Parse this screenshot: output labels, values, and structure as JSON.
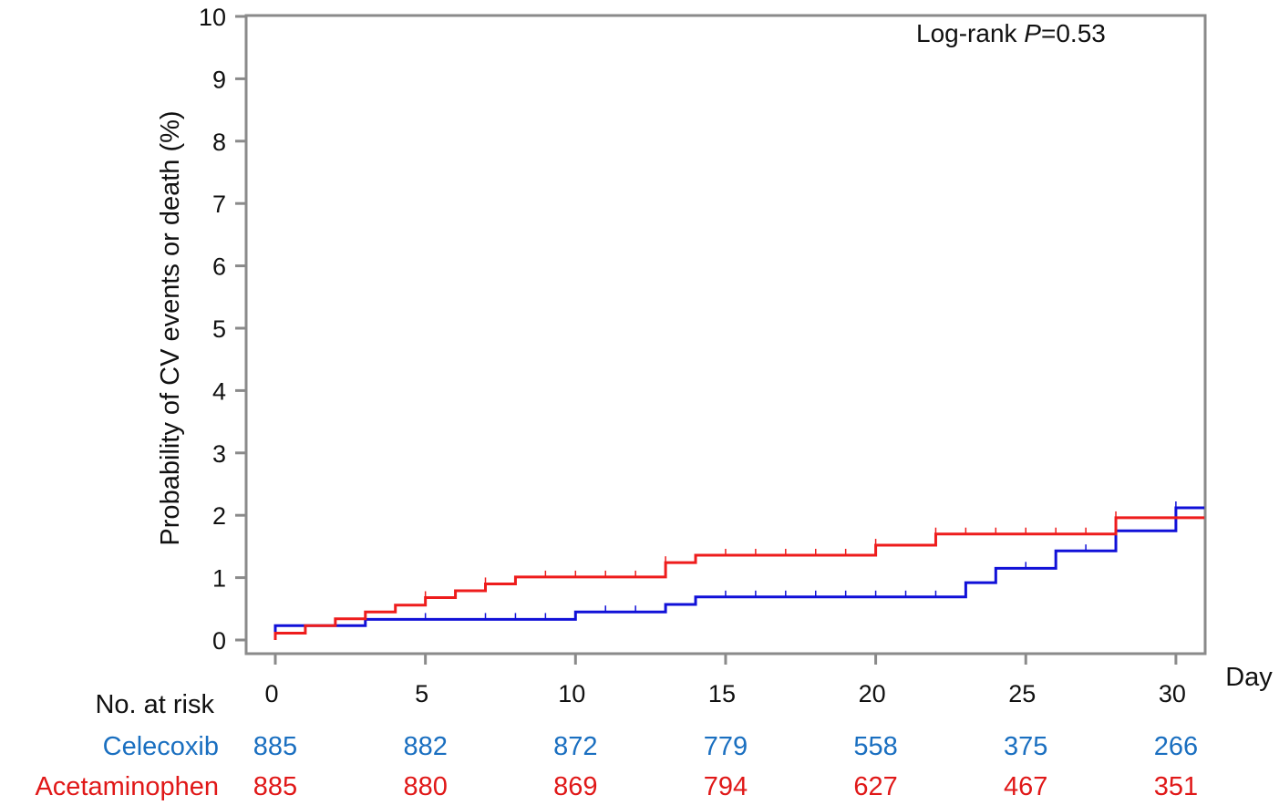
{
  "chart_data": {
    "type": "line",
    "step": true,
    "ylabel": "Probability of CV events or death (%)",
    "xlabel": "Day",
    "xlim": [
      0,
      31
    ],
    "ylim": [
      0,
      10
    ],
    "xticks": [
      "0",
      "5",
      "10",
      "15",
      "20",
      "25",
      "30"
    ],
    "yticks": [
      "0",
      "1",
      "2",
      "3",
      "4",
      "5",
      "6",
      "7",
      "8",
      "9",
      "10"
    ],
    "grid": false,
    "legend": "none",
    "annotation": {
      "prefix": "Log-rank ",
      "italic": "P",
      "suffix": "=0.53"
    },
    "series": [
      {
        "name": "Celecoxib",
        "color": "#1010d8",
        "label_color": "#1a6fc0",
        "steps": [
          [
            0,
            0.23
          ],
          [
            3,
            0.33
          ],
          [
            10,
            0.45
          ],
          [
            13,
            0.57
          ],
          [
            14,
            0.69
          ],
          [
            23,
            0.92
          ],
          [
            24,
            1.15
          ],
          [
            26,
            1.43
          ],
          [
            28,
            1.75
          ],
          [
            30,
            2.12
          ]
        ],
        "censor": [
          5,
          7,
          8,
          9,
          11,
          12,
          15,
          16,
          17,
          18,
          19,
          20,
          21,
          22,
          25,
          27,
          30
        ]
      },
      {
        "name": "Acetaminophen",
        "color": "#ee1c1c",
        "label_color": "#e01818",
        "steps": [
          [
            0,
            0.11
          ],
          [
            1,
            0.23
          ],
          [
            2,
            0.34
          ],
          [
            3,
            0.45
          ],
          [
            4,
            0.56
          ],
          [
            5,
            0.68
          ],
          [
            6,
            0.79
          ],
          [
            7,
            0.9
          ],
          [
            8,
            1.01
          ],
          [
            13,
            1.24
          ],
          [
            14,
            1.36
          ],
          [
            20,
            1.52
          ],
          [
            22,
            1.7
          ],
          [
            28,
            1.96
          ]
        ],
        "censor": [
          5,
          7,
          9,
          10,
          11,
          12,
          13,
          15,
          16,
          17,
          18,
          19,
          20,
          22,
          23,
          24,
          25,
          26,
          27,
          28
        ]
      }
    ],
    "risk_table": {
      "title": "No. at risk",
      "rows": [
        {
          "name": "Celecoxib",
          "values": [
            "885",
            "882",
            "872",
            "779",
            "558",
            "375",
            "266"
          ]
        },
        {
          "name": "Acetaminophen",
          "values": [
            "885",
            "880",
            "869",
            "794",
            "627",
            "467",
            "351"
          ]
        }
      ]
    }
  }
}
